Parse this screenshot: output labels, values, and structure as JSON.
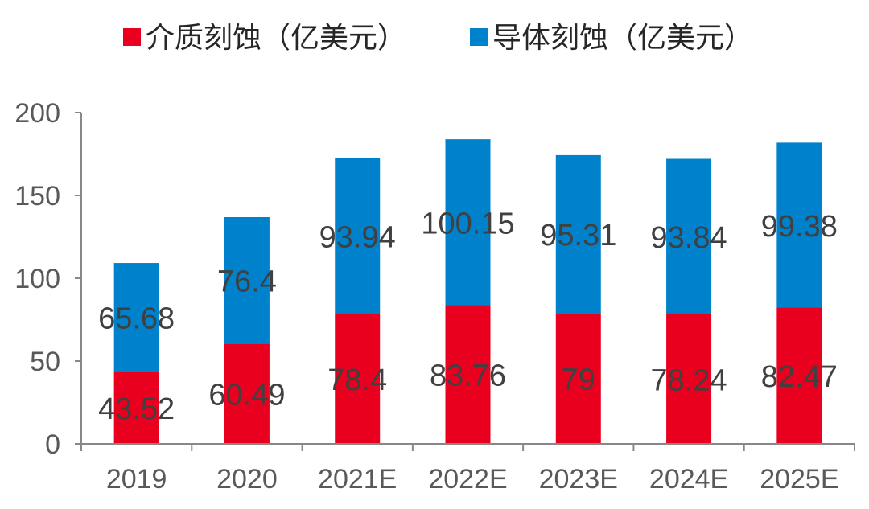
{
  "chart_data": {
    "type": "bar",
    "stacked": true,
    "categories": [
      "2019",
      "2020",
      "2021E",
      "2022E",
      "2023E",
      "2024E",
      "2025E"
    ],
    "series": [
      {
        "name": "介质刻蚀（亿美元）",
        "color": "#E8001E",
        "values": [
          43.52,
          60.49,
          78.4,
          83.76,
          79,
          78.24,
          82.47
        ],
        "labels": [
          "43.52",
          "60.49",
          "78.4",
          "83.76",
          "79",
          "78.24",
          "82.47"
        ]
      },
      {
        "name": "导体刻蚀（亿美元）",
        "color": "#0081CC",
        "values": [
          65.68,
          76.4,
          93.94,
          100.15,
          95.31,
          93.84,
          99.38
        ],
        "labels": [
          "65.68",
          "76.4",
          "93.94",
          "100.15",
          "95.31",
          "93.84",
          "99.38"
        ]
      }
    ],
    "ylim": [
      0,
      200
    ],
    "yticks": [
      "0",
      "50",
      "100",
      "150",
      "200"
    ],
    "legend_position": "top-center",
    "grid": false
  }
}
